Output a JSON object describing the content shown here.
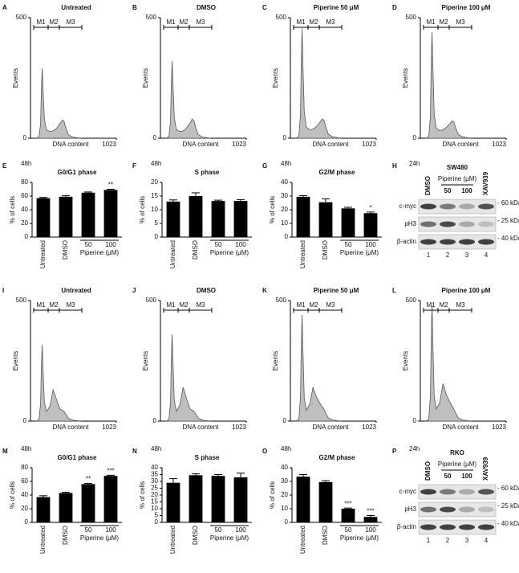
{
  "chart_data": [
    {
      "label": "A",
      "type": "area",
      "title": "Untreated",
      "ylabel": "Events",
      "xlabel": "DNA content",
      "markers": [
        "M1",
        "M2",
        "M3"
      ],
      "x": [
        60,
        100,
        120,
        130,
        140,
        150,
        165,
        190,
        230,
        270,
        310,
        350,
        380,
        400,
        420,
        450,
        500,
        600
      ],
      "values": [
        0,
        5,
        60,
        200,
        290,
        200,
        80,
        35,
        28,
        30,
        40,
        60,
        75,
        70,
        45,
        15,
        5,
        0
      ],
      "xlim": [
        0,
        1023
      ],
      "xticks": [
        1023
      ],
      "ylim": [
        0,
        500
      ],
      "yticks": [
        0,
        500
      ],
      "color": "#bfbfbf"
    },
    {
      "label": "B",
      "type": "area",
      "title": "DMSO",
      "ylabel": "Events",
      "xlabel": "DNA content",
      "markers": [
        "M1",
        "M2",
        "M3"
      ],
      "x": [
        60,
        100,
        120,
        130,
        140,
        150,
        165,
        190,
        230,
        270,
        310,
        350,
        380,
        400,
        420,
        450,
        500,
        600
      ],
      "values": [
        0,
        5,
        70,
        230,
        320,
        220,
        85,
        35,
        28,
        30,
        42,
        62,
        80,
        72,
        45,
        15,
        5,
        0
      ],
      "xlim": [
        0,
        1023
      ],
      "xticks": [
        1023
      ],
      "ylim": [
        0,
        500
      ],
      "yticks": [
        0,
        500
      ],
      "color": "#bfbfbf"
    },
    {
      "label": "C",
      "type": "area",
      "title": "Piperine 50 μM",
      "ylabel": "Events",
      "xlabel": "DNA content",
      "markers": [
        "M1",
        "M2",
        "M3"
      ],
      "x": [
        60,
        100,
        120,
        130,
        140,
        150,
        165,
        190,
        230,
        270,
        310,
        350,
        380,
        400,
        420,
        450,
        500,
        600
      ],
      "values": [
        0,
        6,
        100,
        330,
        455,
        300,
        110,
        45,
        35,
        38,
        48,
        65,
        80,
        75,
        50,
        18,
        6,
        0
      ],
      "xlim": [
        0,
        1023
      ],
      "xticks": [
        1023
      ],
      "ylim": [
        0,
        500
      ],
      "yticks": [
        0,
        500
      ],
      "color": "#bfbfbf"
    },
    {
      "label": "D",
      "type": "area",
      "title": "Piperine 100 μM",
      "ylabel": "Events",
      "xlabel": "DNA content",
      "markers": [
        "M1",
        "M2",
        "M3"
      ],
      "x": [
        60,
        100,
        120,
        130,
        140,
        150,
        165,
        190,
        230,
        270,
        310,
        350,
        380,
        400,
        420,
        450,
        500,
        600
      ],
      "values": [
        0,
        6,
        95,
        320,
        440,
        290,
        100,
        42,
        32,
        35,
        45,
        60,
        72,
        68,
        45,
        16,
        6,
        0
      ],
      "xlim": [
        0,
        1023
      ],
      "xticks": [
        1023
      ],
      "ylim": [
        0,
        500
      ],
      "yticks": [
        0,
        500
      ],
      "color": "#bfbfbf"
    },
    {
      "label": "E",
      "type": "bar",
      "time": "48h",
      "title": "G0/G1 phase",
      "ylabel": "% of cells",
      "categories": [
        "Untreated",
        "DMSO",
        "50",
        "100"
      ],
      "group_label": "Piperine (μM)",
      "values": [
        57,
        59,
        65,
        69
      ],
      "errors": [
        1,
        1.5,
        1,
        1
      ],
      "significance": [
        null,
        null,
        null,
        "**"
      ],
      "ylim": [
        0,
        80
      ],
      "yticks": [
        0,
        20,
        40,
        60,
        80
      ],
      "color": "#000000"
    },
    {
      "label": "F",
      "type": "bar",
      "time": "48h",
      "title": "S phase",
      "ylabel": "% of cells",
      "categories": [
        "Untreated",
        "DMSO",
        "50",
        "100"
      ],
      "group_label": "Piperine (μM)",
      "values": [
        13,
        15,
        13.2,
        13.2
      ],
      "errors": [
        0.6,
        1.2,
        0.3,
        0.5
      ],
      "significance": [
        null,
        null,
        null,
        null
      ],
      "ylim": [
        0,
        20
      ],
      "yticks": [
        0,
        5,
        10,
        15,
        20
      ],
      "color": "#000000"
    },
    {
      "label": "G",
      "type": "bar",
      "time": "48h",
      "title": "G2/M phase",
      "ylabel": "% of cells",
      "categories": [
        "Untreated",
        "DMSO",
        "50",
        "100"
      ],
      "group_label": "Piperine (μM)",
      "values": [
        29.5,
        25.5,
        21,
        17.5
      ],
      "errors": [
        0.8,
        2.5,
        0.8,
        0.8
      ],
      "significance": [
        null,
        null,
        null,
        "*"
      ],
      "ylim": [
        0,
        40
      ],
      "yticks": [
        0,
        10,
        20,
        30,
        40
      ],
      "color": "#000000"
    },
    {
      "label": "H",
      "type": "blot",
      "time": "24h",
      "cell_line": "SW480",
      "lanes": [
        "DMSO",
        "50",
        "100",
        "XAV939"
      ],
      "group_label": "Piperine (μM)",
      "rows": [
        "c-myc",
        "pH3",
        "β-actin"
      ],
      "markers": [
        "- 60 kDa",
        "- 25 kDa",
        "- 40 kDa"
      ],
      "lane_numbers": [
        "1",
        "2",
        "3",
        "4"
      ]
    },
    {
      "label": "I",
      "type": "area",
      "title": "Untreated",
      "ylabel": "Events",
      "xlabel": "DNA content",
      "markers": [
        "M1",
        "M2",
        "M3"
      ],
      "x": [
        60,
        100,
        120,
        130,
        140,
        150,
        165,
        190,
        230,
        270,
        310,
        350,
        380,
        400,
        420,
        450,
        500,
        600
      ],
      "values": [
        0,
        5,
        70,
        230,
        315,
        210,
        80,
        40,
        60,
        130,
        90,
        50,
        45,
        40,
        30,
        12,
        4,
        0
      ],
      "xlim": [
        0,
        1023
      ],
      "xticks": [
        1023
      ],
      "ylim": [
        0,
        500
      ],
      "yticks": [
        0,
        500
      ],
      "color": "#bfbfbf"
    },
    {
      "label": "J",
      "type": "area",
      "title": "DMSO",
      "ylabel": "Events",
      "xlabel": "DNA content",
      "markers": [
        "M1",
        "M2",
        "M3"
      ],
      "x": [
        60,
        100,
        120,
        130,
        140,
        150,
        165,
        190,
        230,
        270,
        310,
        350,
        380,
        400,
        420,
        450,
        500,
        600
      ],
      "values": [
        0,
        5,
        80,
        260,
        360,
        240,
        85,
        40,
        65,
        140,
        95,
        52,
        45,
        40,
        30,
        12,
        4,
        0
      ],
      "xlim": [
        0,
        1023
      ],
      "xticks": [
        1023
      ],
      "ylim": [
        0,
        500
      ],
      "yticks": [
        0,
        500
      ],
      "color": "#bfbfbf"
    },
    {
      "label": "K",
      "type": "area",
      "title": "Piperine 50 μM",
      "ylabel": "Events",
      "xlabel": "DNA content",
      "markers": [
        "M1",
        "M2",
        "M3"
      ],
      "x": [
        60,
        100,
        120,
        130,
        140,
        150,
        165,
        190,
        230,
        270,
        310,
        350,
        380,
        400,
        420,
        450,
        500,
        600
      ],
      "values": [
        0,
        6,
        100,
        320,
        440,
        290,
        95,
        45,
        70,
        140,
        100,
        75,
        60,
        50,
        35,
        14,
        5,
        0
      ],
      "xlim": [
        0,
        1023
      ],
      "xticks": [
        1023
      ],
      "ylim": [
        0,
        500
      ],
      "yticks": [
        0,
        500
      ],
      "color": "#bfbfbf"
    },
    {
      "label": "L",
      "type": "area",
      "title": "Piperine 100 μM",
      "ylabel": "Events",
      "xlabel": "DNA content",
      "markers": [
        "M1",
        "M2",
        "M3"
      ],
      "x": [
        60,
        100,
        120,
        130,
        140,
        150,
        165,
        190,
        230,
        270,
        310,
        350,
        380,
        400,
        420,
        450,
        500,
        600
      ],
      "values": [
        0,
        6,
        110,
        350,
        480,
        310,
        100,
        50,
        75,
        155,
        110,
        80,
        62,
        50,
        35,
        14,
        5,
        0
      ],
      "xlim": [
        0,
        1023
      ],
      "xticks": [
        1023
      ],
      "ylim": [
        0,
        500
      ],
      "yticks": [
        0,
        500
      ],
      "color": "#bfbfbf"
    },
    {
      "label": "M",
      "type": "bar",
      "time": "48h",
      "title": "G0/G1 phase",
      "ylabel": "% of cells",
      "categories": [
        "Untreated",
        "DMSO",
        "50",
        "100"
      ],
      "group_label": "Piperine (μM)",
      "values": [
        37,
        43,
        56,
        68
      ],
      "errors": [
        2,
        1,
        1,
        1
      ],
      "significance": [
        null,
        null,
        "**",
        "***"
      ],
      "ylim": [
        0,
        80
      ],
      "yticks": [
        0,
        20,
        40,
        60,
        80
      ],
      "color": "#000000"
    },
    {
      "label": "N",
      "type": "bar",
      "time": "48h",
      "title": "S phase",
      "ylabel": "% of cells",
      "categories": [
        "Untreated",
        "DMSO",
        "50",
        "100"
      ],
      "group_label": "Piperine (μM)",
      "values": [
        29,
        34.5,
        34,
        33
      ],
      "errors": [
        3,
        1,
        1,
        3
      ],
      "significance": [
        null,
        null,
        null,
        null
      ],
      "ylim": [
        0,
        40
      ],
      "yticks": [
        0,
        5,
        10,
        15,
        20,
        25,
        30,
        35,
        40
      ],
      "color": "#000000"
    },
    {
      "label": "O",
      "type": "bar",
      "time": "48h",
      "title": "G2/M phase",
      "ylabel": "% of cells",
      "categories": [
        "Untreated",
        "DMSO",
        "50",
        "100"
      ],
      "group_label": "Piperine (μM)",
      "values": [
        33.5,
        29.5,
        10,
        4
      ],
      "errors": [
        1.5,
        1,
        0.5,
        1
      ],
      "significance": [
        null,
        null,
        "***",
        "***"
      ],
      "ylim": [
        0,
        40
      ],
      "yticks": [
        0,
        10,
        20,
        30,
        40
      ],
      "color": "#000000"
    },
    {
      "label": "P",
      "type": "blot",
      "time": "24h",
      "cell_line": "RKO",
      "lanes": [
        "DMSO",
        "50",
        "100",
        "XAV939"
      ],
      "group_label": "Piperine (μM)",
      "rows": [
        "c-myc",
        "pH3",
        "β-actin"
      ],
      "markers": [
        "- 60 kDa",
        "- 25 kDa",
        "- 40 kDa"
      ],
      "lane_numbers": [
        "1",
        "2",
        "3",
        "4"
      ]
    }
  ]
}
